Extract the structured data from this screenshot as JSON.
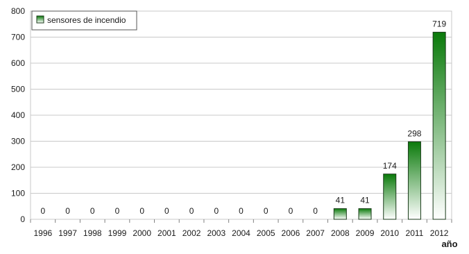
{
  "chart_data": {
    "type": "bar",
    "categories": [
      "1996",
      "1997",
      "1998",
      "1999",
      "2000",
      "2001",
      "2002",
      "2003",
      "2004",
      "2005",
      "2006",
      "2007",
      "2008",
      "2009",
      "2010",
      "2011",
      "2012"
    ],
    "series": [
      {
        "name": "sensores de incendio",
        "values": [
          0,
          0,
          0,
          0,
          0,
          0,
          0,
          0,
          0,
          0,
          0,
          0,
          41,
          41,
          174,
          298,
          719
        ]
      }
    ],
    "xlabel": "año",
    "ylabel": "",
    "ylim": [
      0,
      800
    ],
    "yticks": [
      0,
      100,
      200,
      300,
      400,
      500,
      600,
      700,
      800
    ],
    "grid": true,
    "legend_position": "top-left",
    "colors": {
      "bar_top": "#0a7a0a",
      "bar_bottom": "#ffffff",
      "bar_stroke": "#1a3a1a",
      "grid": "#c8c8c8",
      "axis": "#808080",
      "text": "#1a1a1a"
    }
  }
}
